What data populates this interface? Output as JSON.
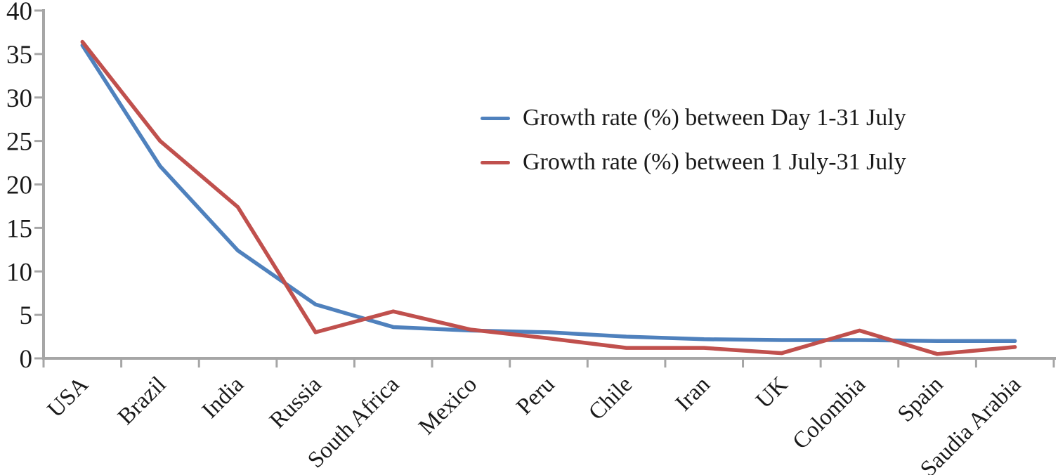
{
  "chart_data": {
    "type": "line",
    "title": "",
    "xlabel": "",
    "ylabel": "",
    "categories": [
      "USA",
      "Brazil",
      "India",
      "Russia",
      "South Africa",
      "Mexico",
      "Peru",
      "Chile",
      "Iran",
      "UK",
      "Colombia",
      "Spain",
      "Saudia Arabia"
    ],
    "series": [
      {
        "name": "Growth rate (%) between Day 1-31 July",
        "color": "#4f81bd",
        "values": [
          36.0,
          22.1,
          12.4,
          6.2,
          3.6,
          3.2,
          3.0,
          2.5,
          2.2,
          2.1,
          2.1,
          2.0,
          2.0
        ]
      },
      {
        "name": "Growth rate (%) between 1 July-31 July",
        "color": "#c0504d",
        "values": [
          36.4,
          25.0,
          17.4,
          3.0,
          5.4,
          3.3,
          2.3,
          1.2,
          1.2,
          0.6,
          3.2,
          0.5,
          1.3
        ]
      }
    ],
    "ylim": [
      0,
      40
    ],
    "y_ticks": [
      0,
      5,
      10,
      15,
      20,
      25,
      30,
      35,
      40
    ],
    "grid": false,
    "legend_position": "inside-top-right",
    "x_label_rotation_deg": -45,
    "axis_color": "#a6a6a6",
    "label_color": "#1a1a1a"
  }
}
